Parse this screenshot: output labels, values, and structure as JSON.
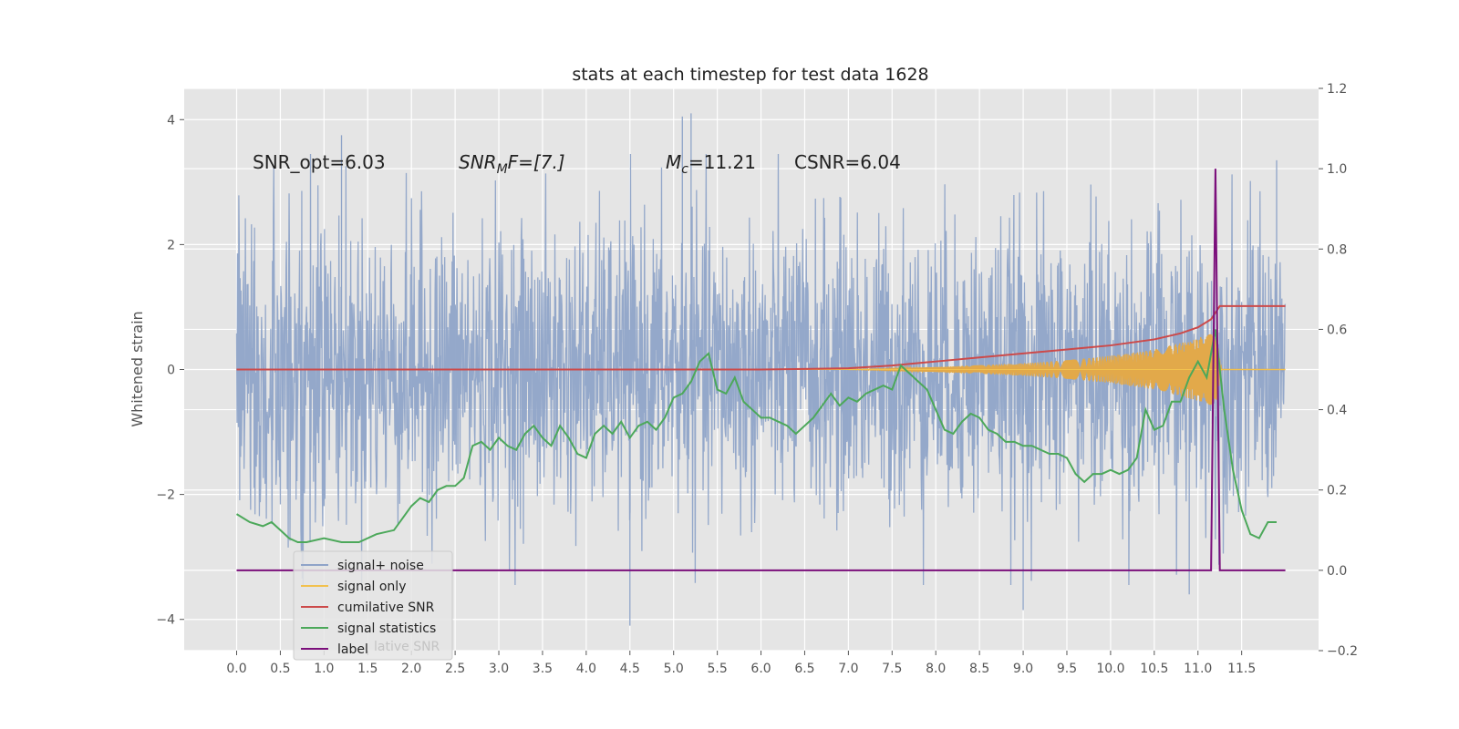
{
  "chart_data": {
    "type": "line",
    "title": "stats at each timestep for test data 1628",
    "ylabel": "Whitened strain",
    "y2label": "",
    "xlim": [
      -0.6,
      12.38
    ],
    "ylim": [
      -4.5,
      4.5
    ],
    "y2lim": [
      -0.2,
      1.2
    ],
    "x_ticks": [
      0.0,
      0.5,
      1.0,
      1.5,
      2.0,
      2.5,
      3.0,
      3.5,
      4.0,
      4.5,
      5.0,
      5.5,
      6.0,
      6.5,
      7.0,
      7.5,
      8.0,
      8.5,
      9.0,
      9.5,
      10.0,
      10.5,
      11.0,
      11.5
    ],
    "x_tick_labels": [
      "0.0",
      "0.5",
      "1.0",
      "1.5",
      "2.0",
      "2.5",
      "3.0",
      "3.5",
      "4.0",
      "4.5",
      "5.0",
      "5.5",
      "6.0",
      "6.5",
      "7.0",
      "7.5",
      "8.0",
      "8.5",
      "9.0",
      "9.5",
      "10.0",
      "10.5",
      "11.0",
      "11.5"
    ],
    "y_ticks": [
      4,
      2,
      0,
      -2,
      -4
    ],
    "y_tick_labels": [
      "4",
      "2",
      "0",
      "−2",
      "−4"
    ],
    "y2_ticks": [
      1.2,
      1.0,
      0.8,
      0.6,
      0.4,
      0.2,
      0.0,
      -0.2
    ],
    "y2_tick_labels": [
      "1.2",
      "1.0",
      "0.8",
      "0.6",
      "0.4",
      "0.2",
      "0.0",
      "−0.2"
    ],
    "grid": true,
    "legend_position": "lower-left",
    "annotations": {
      "snr_opt": "SNR_opt=6.03",
      "snr_mf_main": "SNR",
      "snr_mf_sub": "M",
      "snr_mf_tail": "F=[7.]",
      "mc_main": "M",
      "mc_sub": "c",
      "mc_tail": "=11.21",
      "csnr": "CSNR=6.04"
    },
    "legend": [
      {
        "label": "signal+ noise",
        "color": "#8fa4c8"
      },
      {
        "label": "signal only",
        "color": "#f2c14e"
      },
      {
        "label": "cumilative SNR",
        "color": "#cc4a4a"
      },
      {
        "label": "signal statistics",
        "color": "#4ca85a"
      },
      {
        "label": "label",
        "color": "#7b0f7b"
      }
    ],
    "legend_ghost_text": "lative SNR",
    "series": [
      {
        "name": "signal+ noise",
        "axis": "left",
        "kind": "noise",
        "color": "#8fa4c8",
        "x_range": [
          0.0,
          12.0
        ],
        "envelope": [
          -4.1,
          4.1
        ],
        "spikes": [
          [
            1.2,
            3.75
          ],
          [
            4.5,
            -4.1
          ],
          [
            5.1,
            4.05
          ],
          [
            5.2,
            4.1
          ],
          [
            10.9,
            -3.6
          ],
          [
            9.0,
            -3.85
          ],
          [
            11.9,
            3.35
          ]
        ]
      },
      {
        "name": "signal only",
        "axis": "left",
        "kind": "chirp",
        "color": "#e2a94a",
        "x": [
          7.0,
          7.5,
          8.0,
          8.5,
          9.0,
          9.5,
          10.0,
          10.5,
          11.0,
          11.2,
          11.27,
          12.0
        ],
        "amp": [
          0.0,
          0.02,
          0.04,
          0.07,
          0.1,
          0.15,
          0.22,
          0.32,
          0.5,
          0.62,
          0.0,
          0.0
        ]
      },
      {
        "name": "cumilative SNR",
        "axis": "right",
        "color": "#cc4a4a",
        "x": [
          0.0,
          6.0,
          7.0,
          7.5,
          8.0,
          8.5,
          9.0,
          9.5,
          10.0,
          10.5,
          10.8,
          11.0,
          11.15,
          11.25,
          12.0
        ],
        "y": [
          0.5,
          0.5,
          0.503,
          0.51,
          0.52,
          0.53,
          0.54,
          0.55,
          0.56,
          0.575,
          0.59,
          0.605,
          0.625,
          0.658,
          0.658
        ]
      },
      {
        "name": "signal statistics",
        "axis": "right",
        "color": "#4ca85a",
        "x": [
          0.0,
          0.15,
          0.3,
          0.4,
          0.5,
          0.6,
          0.7,
          0.8,
          1.0,
          1.2,
          1.4,
          1.6,
          1.8,
          1.9,
          2.0,
          2.1,
          2.2,
          2.3,
          2.4,
          2.5,
          2.6,
          2.7,
          2.8,
          2.9,
          3.0,
          3.1,
          3.2,
          3.3,
          3.4,
          3.5,
          3.6,
          3.7,
          3.8,
          3.9,
          4.0,
          4.1,
          4.2,
          4.3,
          4.4,
          4.5,
          4.6,
          4.7,
          4.8,
          4.9,
          5.0,
          5.1,
          5.2,
          5.3,
          5.4,
          5.5,
          5.6,
          5.7,
          5.8,
          5.9,
          6.0,
          6.1,
          6.2,
          6.3,
          6.4,
          6.5,
          6.6,
          6.7,
          6.8,
          6.9,
          7.0,
          7.1,
          7.2,
          7.3,
          7.4,
          7.5,
          7.6,
          7.7,
          7.8,
          7.9,
          8.0,
          8.1,
          8.2,
          8.3,
          8.4,
          8.5,
          8.6,
          8.7,
          8.8,
          8.9,
          9.0,
          9.1,
          9.2,
          9.3,
          9.4,
          9.5,
          9.6,
          9.7,
          9.8,
          9.9,
          10.0,
          10.1,
          10.2,
          10.3,
          10.4,
          10.5,
          10.6,
          10.7,
          10.8,
          10.9,
          11.0,
          11.1,
          11.2,
          11.3,
          11.4,
          11.5,
          11.6,
          11.7,
          11.8,
          11.9
        ],
        "y": [
          0.14,
          0.12,
          0.11,
          0.12,
          0.1,
          0.08,
          0.07,
          0.07,
          0.08,
          0.07,
          0.07,
          0.09,
          0.1,
          0.13,
          0.16,
          0.18,
          0.17,
          0.2,
          0.21,
          0.21,
          0.23,
          0.31,
          0.32,
          0.3,
          0.33,
          0.31,
          0.3,
          0.34,
          0.36,
          0.33,
          0.31,
          0.36,
          0.33,
          0.29,
          0.28,
          0.34,
          0.36,
          0.34,
          0.37,
          0.33,
          0.36,
          0.37,
          0.35,
          0.38,
          0.43,
          0.44,
          0.47,
          0.52,
          0.54,
          0.45,
          0.44,
          0.48,
          0.42,
          0.4,
          0.38,
          0.38,
          0.37,
          0.36,
          0.34,
          0.36,
          0.38,
          0.41,
          0.44,
          0.41,
          0.43,
          0.42,
          0.44,
          0.45,
          0.46,
          0.45,
          0.51,
          0.49,
          0.47,
          0.45,
          0.4,
          0.35,
          0.34,
          0.37,
          0.39,
          0.38,
          0.35,
          0.34,
          0.32,
          0.32,
          0.31,
          0.31,
          0.3,
          0.29,
          0.29,
          0.28,
          0.24,
          0.22,
          0.24,
          0.24,
          0.25,
          0.24,
          0.25,
          0.28,
          0.4,
          0.35,
          0.36,
          0.42,
          0.42,
          0.48,
          0.52,
          0.48,
          0.6,
          0.4,
          0.25,
          0.15,
          0.09,
          0.08,
          0.12,
          0.12
        ]
      },
      {
        "name": "label",
        "axis": "right",
        "color": "#7b0f7b",
        "x": [
          0.0,
          11.15,
          11.2,
          11.25,
          12.0
        ],
        "y": [
          0.0,
          0.0,
          1.0,
          0.0,
          0.0
        ]
      }
    ]
  }
}
